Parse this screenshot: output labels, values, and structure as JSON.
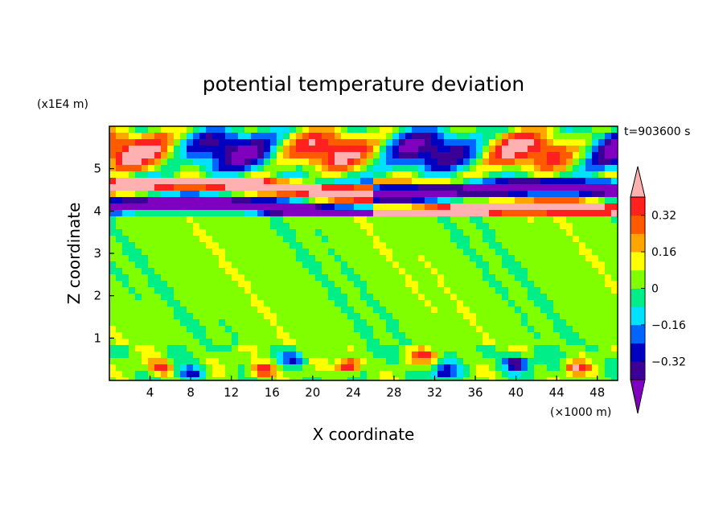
{
  "chart_data": {
    "type": "heatmap",
    "title": "potential temperature deviation",
    "xlabel": "X coordinate",
    "ylabel": "Z coordinate",
    "x_unit": "(×1000 m)",
    "y_unit": "(x1E4 m)",
    "time_label": "t=903600 s",
    "xlim": [
      0,
      50
    ],
    "ylim": [
      0,
      6
    ],
    "x_ticks": [
      4,
      8,
      12,
      16,
      20,
      24,
      28,
      32,
      36,
      40,
      44,
      48
    ],
    "y_ticks": [
      1,
      2,
      3,
      4,
      5
    ],
    "colorbar": {
      "levels": [
        -0.4,
        -0.32,
        -0.24,
        -0.16,
        -0.08,
        0,
        0.08,
        0.16,
        0.24,
        0.32,
        0.4
      ],
      "labels": [
        "0.32",
        "0.16",
        "0",
        "-0.16",
        "-0.32"
      ],
      "label_values": [
        0.32,
        0.16,
        0,
        -0.16,
        -0.32
      ],
      "colors": [
        "#7f00bf",
        "#3c0096",
        "#0000c0",
        "#0064ff",
        "#00e0ff",
        "#00ee88",
        "#80ff00",
        "#ffff00",
        "#ffa500",
        "#ff5a00",
        "#ff2020",
        "#ffb0b0"
      ]
    }
  }
}
